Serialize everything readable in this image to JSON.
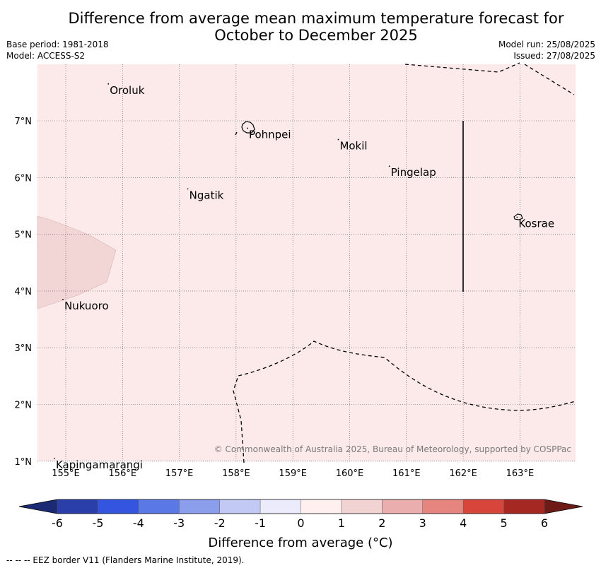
{
  "title_line1": "Difference from average mean maximum temperature forecast for",
  "title_line2": "October to December 2025",
  "meta": {
    "base_period": "Base period: 1981-2018",
    "model": "Model: ACCESS-S2",
    "model_run": "Model run: 25/08/2025",
    "issued": "Issued: 27/08/2025"
  },
  "map": {
    "background_color": "#fbeae9",
    "anomaly_patch_color": "#f2d6d5",
    "lat_labels": [
      "7°N",
      "6°N",
      "5°N",
      "4°N",
      "3°N",
      "2°N",
      "1°N"
    ],
    "lon_labels": [
      "155°E",
      "156°E",
      "157°E",
      "158°E",
      "159°E",
      "160°E",
      "161°E",
      "162°E",
      "163°E"
    ],
    "places": [
      {
        "name": "Oroluk",
        "lon": 155.75,
        "lat": 7.65
      },
      {
        "name": "Pohnpei",
        "lon": 158.2,
        "lat": 6.87
      },
      {
        "name": "Mokil",
        "lon": 159.8,
        "lat": 6.67
      },
      {
        "name": "Pingelap",
        "lon": 160.7,
        "lat": 6.2
      },
      {
        "name": "Ngatik",
        "lon": 157.15,
        "lat": 5.8
      },
      {
        "name": "Kosrae",
        "lon": 162.95,
        "lat": 5.3
      },
      {
        "name": "Nukuoro",
        "lon": 154.95,
        "lat": 3.85
      },
      {
        "name": "Kapingamarangi",
        "lon": 154.8,
        "lat": 1.05
      }
    ],
    "copyright": "© Commonwealth of Australia 2025, Bureau of Meteorology, supported by COSPPac"
  },
  "colorbar": {
    "label": "Difference from average (°C)",
    "ticks": [
      "-6",
      "-5",
      "-4",
      "-3",
      "-2",
      "-1",
      "0",
      "1",
      "2",
      "3",
      "4",
      "5",
      "6"
    ],
    "colors": [
      "#2a3fa9",
      "#3355e0",
      "#5a78e6",
      "#8a9eec",
      "#c2c9f4",
      "#ebebfb",
      "#fdf0ef",
      "#f1d3d3",
      "#ebaeae",
      "#e6847f",
      "#d8463b",
      "#a62823"
    ],
    "extend_low_color": "#1b2a73",
    "extend_high_color": "#6e1a17"
  },
  "footer": "--  --  -- EEZ border V11 (Flanders Marine Institute, 2019)."
}
